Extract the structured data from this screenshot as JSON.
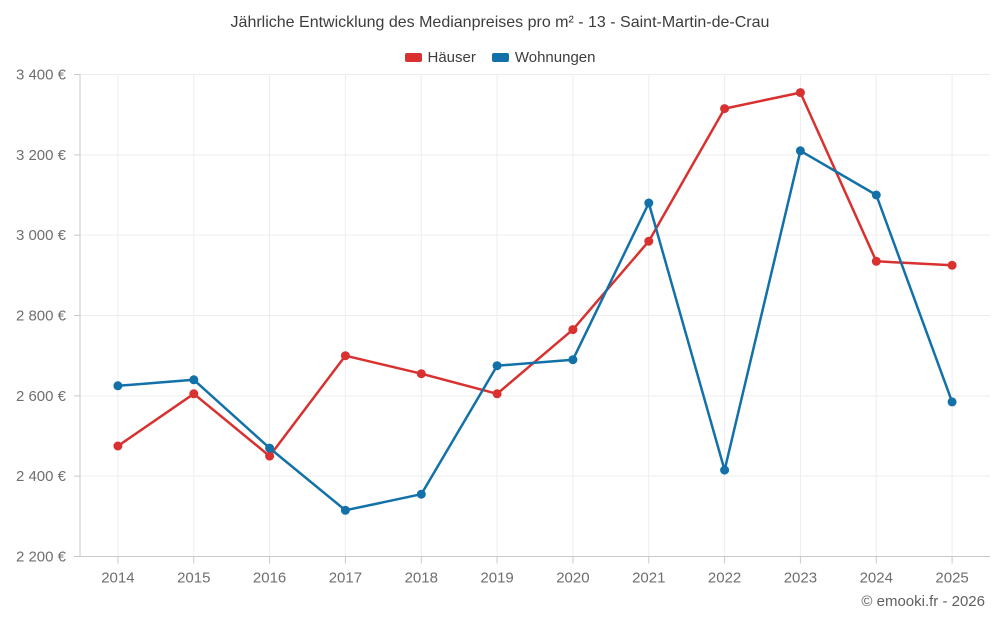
{
  "page": {
    "title": "Jährliche Entwicklung des Medianpreises pro m² - 13 - Saint-Martin-de-Crau",
    "footer": "© emooki.fr - 2026"
  },
  "colors": {
    "hauser_red": "#d8312f",
    "wohnungen_blue": "#1371a9",
    "grid": "#ededed",
    "axis": "#c9c9c9",
    "title_text": "#3d3d3d",
    "axis_text": "#6f6f6f",
    "footer_text": "#606060"
  },
  "chart_data": {
    "type": "line",
    "title": "Jährliche Entwicklung des Medianpreises pro m² - 13 - Saint-Martin-de-Crau",
    "categories": [
      "2014",
      "2015",
      "2016",
      "2017",
      "2018",
      "2019",
      "2020",
      "2021",
      "2022",
      "2023",
      "2024",
      "2025"
    ],
    "series": [
      {
        "name": "Häuser",
        "color": "#d8312f",
        "values": [
          2475,
          2605,
          2450,
          2700,
          2655,
          2605,
          2765,
          2985,
          3315,
          3355,
          2935,
          2925
        ]
      },
      {
        "name": "Wohnungen",
        "color": "#1371a9",
        "values": [
          2625,
          2640,
          2470,
          2315,
          2355,
          2675,
          2690,
          3080,
          2415,
          3210,
          3100,
          2585
        ]
      }
    ],
    "ylim": [
      2200,
      3400
    ],
    "ytick_step": 200,
    "ytick_labels": [
      "2 200 €",
      "2 400 €",
      "2 600 €",
      "2 800 €",
      "3 000 €",
      "3 200 €",
      "3 400 €"
    ],
    "xlabel": "",
    "ylabel": "",
    "grid": true,
    "legend_position": "top",
    "unit": "€"
  }
}
